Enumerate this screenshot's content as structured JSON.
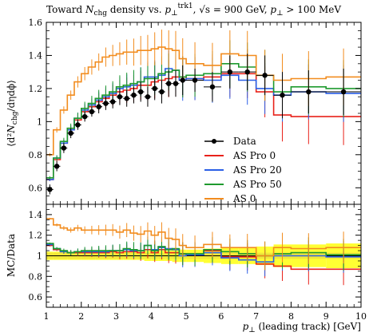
{
  "chart_data": {
    "type": "line",
    "title": "Toward N_chg density vs. p_⊥^trk1, √s = 900 GeV, p_⊥ > 100 MeV",
    "title_parts": {
      "a": "Toward ",
      "b": "N",
      "c": "chg",
      "d": " density vs. ",
      "e": "p",
      "f": "⊥",
      "g": "trk1",
      "h": ", √s = 900 GeV, ",
      "i": "p",
      "j": "⊥",
      "k": " > 100 MeV"
    },
    "ylabel": "⟨d²N_chg/dηdϕ⟩",
    "ylabel_parts": {
      "a": "⟨d²",
      "b": "N",
      "c": "chg",
      "d": "/dηdϕ⟩"
    },
    "ratio_ylabel": "MC/Data",
    "xlabel": "p_⊥ (leading track) [GeV]",
    "xlabel_parts": {
      "a": "p",
      "b": "⊥",
      "c": " (leading track) [GeV]"
    },
    "xlim": [
      1,
      10
    ],
    "ylim": [
      0.5,
      1.6
    ],
    "ratio_ylim": [
      0.5,
      1.5
    ],
    "x_ticks": [
      "1",
      "2",
      "3",
      "4",
      "5",
      "6",
      "7",
      "8",
      "9",
      "10"
    ],
    "y_ticks": [
      "0.6",
      "0.8",
      "1",
      "1.2",
      "1.4",
      "1.6"
    ],
    "ratio_y_ticks": [
      "0.6",
      "0.8",
      "1",
      "1.2",
      "1.4"
    ],
    "bin_edges": [
      1.0,
      1.2,
      1.4,
      1.6,
      1.8,
      2.0,
      2.2,
      2.4,
      2.6,
      2.8,
      3.0,
      3.2,
      3.4,
      3.6,
      3.8,
      4.0,
      4.2,
      4.4,
      4.6,
      4.8,
      5.0,
      5.5,
      6.0,
      6.5,
      7.0,
      7.5,
      8.0,
      9.0,
      10.0
    ],
    "data": {
      "name": "Data",
      "x": [
        1.1,
        1.3,
        1.5,
        1.7,
        1.9,
        2.1,
        2.3,
        2.5,
        2.7,
        2.9,
        3.1,
        3.3,
        3.5,
        3.7,
        3.9,
        4.1,
        4.3,
        4.5,
        4.7,
        4.9,
        5.25,
        5.75,
        6.25,
        6.75,
        7.25,
        7.75,
        8.5,
        9.5
      ],
      "y": [
        0.59,
        0.73,
        0.84,
        0.93,
        0.98,
        1.03,
        1.06,
        1.09,
        1.11,
        1.12,
        1.15,
        1.14,
        1.16,
        1.18,
        1.15,
        1.2,
        1.18,
        1.23,
        1.23,
        1.25,
        1.25,
        1.21,
        1.3,
        1.3,
        1.28,
        1.16,
        1.18,
        1.18
      ],
      "err": [
        0.03,
        0.03,
        0.03,
        0.03,
        0.03,
        0.03,
        0.03,
        0.04,
        0.04,
        0.04,
        0.05,
        0.05,
        0.05,
        0.06,
        0.06,
        0.07,
        0.07,
        0.08,
        0.08,
        0.09,
        0.07,
        0.09,
        0.1,
        0.11,
        0.12,
        0.14,
        0.13,
        0.14
      ]
    },
    "series": [
      {
        "name": "AS Pro 0",
        "color": "#e8221a",
        "values": [
          0.65,
          0.77,
          0.87,
          0.95,
          1.01,
          1.06,
          1.09,
          1.12,
          1.14,
          1.16,
          1.18,
          1.19,
          1.2,
          1.22,
          1.22,
          1.24,
          1.25,
          1.26,
          1.27,
          1.27,
          1.26,
          1.27,
          1.29,
          1.29,
          1.18,
          1.04,
          1.03,
          1.03
        ],
        "ratio": [
          1.1,
          1.06,
          1.04,
          1.03,
          1.03,
          1.03,
          1.03,
          1.03,
          1.03,
          1.04,
          1.03,
          1.04,
          1.04,
          1.03,
          1.06,
          1.03,
          1.06,
          1.03,
          1.03,
          1.02,
          1.01,
          1.05,
          0.99,
          0.99,
          0.92,
          0.9,
          0.87,
          0.87
        ]
      },
      {
        "name": "AS Pro 20",
        "color": "#2a5fe6",
        "values": [
          0.65,
          0.78,
          0.87,
          0.95,
          1.02,
          1.07,
          1.1,
          1.13,
          1.15,
          1.17,
          1.2,
          1.21,
          1.22,
          1.24,
          1.27,
          1.27,
          1.28,
          1.32,
          1.31,
          1.25,
          1.26,
          1.25,
          1.28,
          1.25,
          1.2,
          1.16,
          1.18,
          1.17
        ],
        "ratio": [
          1.11,
          1.07,
          1.04,
          1.03,
          1.04,
          1.04,
          1.04,
          1.04,
          1.04,
          1.05,
          1.05,
          1.06,
          1.05,
          1.05,
          1.1,
          1.06,
          1.08,
          1.07,
          1.06,
          1.0,
          1.01,
          1.03,
          0.98,
          0.96,
          0.94,
          1.0,
          1.0,
          0.99
        ]
      },
      {
        "name": "AS Pro 50",
        "color": "#1e9a2e",
        "values": [
          0.66,
          0.78,
          0.88,
          0.96,
          1.02,
          1.08,
          1.11,
          1.14,
          1.16,
          1.18,
          1.21,
          1.22,
          1.23,
          1.24,
          1.26,
          1.26,
          1.29,
          1.3,
          1.31,
          1.27,
          1.28,
          1.29,
          1.35,
          1.33,
          1.28,
          1.18,
          1.21,
          1.2
        ],
        "ratio": [
          1.12,
          1.07,
          1.05,
          1.03,
          1.04,
          1.05,
          1.05,
          1.05,
          1.05,
          1.05,
          1.05,
          1.07,
          1.06,
          1.05,
          1.1,
          1.05,
          1.09,
          1.06,
          1.07,
          1.02,
          1.02,
          1.06,
          1.04,
          1.02,
          1.0,
          1.02,
          1.03,
          1.01
        ]
      },
      {
        "name": "AS 0",
        "color": "#f28c1e",
        "values": [
          0.8,
          0.95,
          1.07,
          1.16,
          1.24,
          1.29,
          1.33,
          1.36,
          1.39,
          1.4,
          1.41,
          1.42,
          1.42,
          1.43,
          1.43,
          1.44,
          1.45,
          1.44,
          1.43,
          1.38,
          1.35,
          1.34,
          1.41,
          1.4,
          1.28,
          1.25,
          1.26,
          1.27
        ],
        "ratio": [
          1.36,
          1.3,
          1.27,
          1.25,
          1.27,
          1.25,
          1.25,
          1.25,
          1.25,
          1.25,
          1.23,
          1.25,
          1.22,
          1.21,
          1.24,
          1.2,
          1.23,
          1.17,
          1.16,
          1.1,
          1.08,
          1.11,
          1.08,
          1.08,
          1.0,
          1.08,
          1.07,
          1.08
        ]
      }
    ],
    "data_band_yellow": [
      0.04,
      0.04,
      0.04,
      0.04,
      0.04,
      0.04,
      0.04,
      0.04,
      0.04,
      0.04,
      0.04,
      0.04,
      0.04,
      0.04,
      0.05,
      0.05,
      0.05,
      0.05,
      0.06,
      0.06,
      0.06,
      0.07,
      0.08,
      0.08,
      0.09,
      0.11,
      0.11,
      0.12
    ],
    "data_band_green": [
      0.03,
      0.03,
      0.03,
      0.03,
      0.03,
      0.03,
      0.03,
      0.03,
      0.03,
      0.03,
      0.03,
      0.03,
      0.03,
      0.03,
      0.03,
      0.03,
      0.03,
      0.03,
      0.03,
      0.03,
      0.03,
      0.03,
      0.03,
      0.03,
      0.03,
      0.03,
      0.03,
      0.03
    ]
  }
}
